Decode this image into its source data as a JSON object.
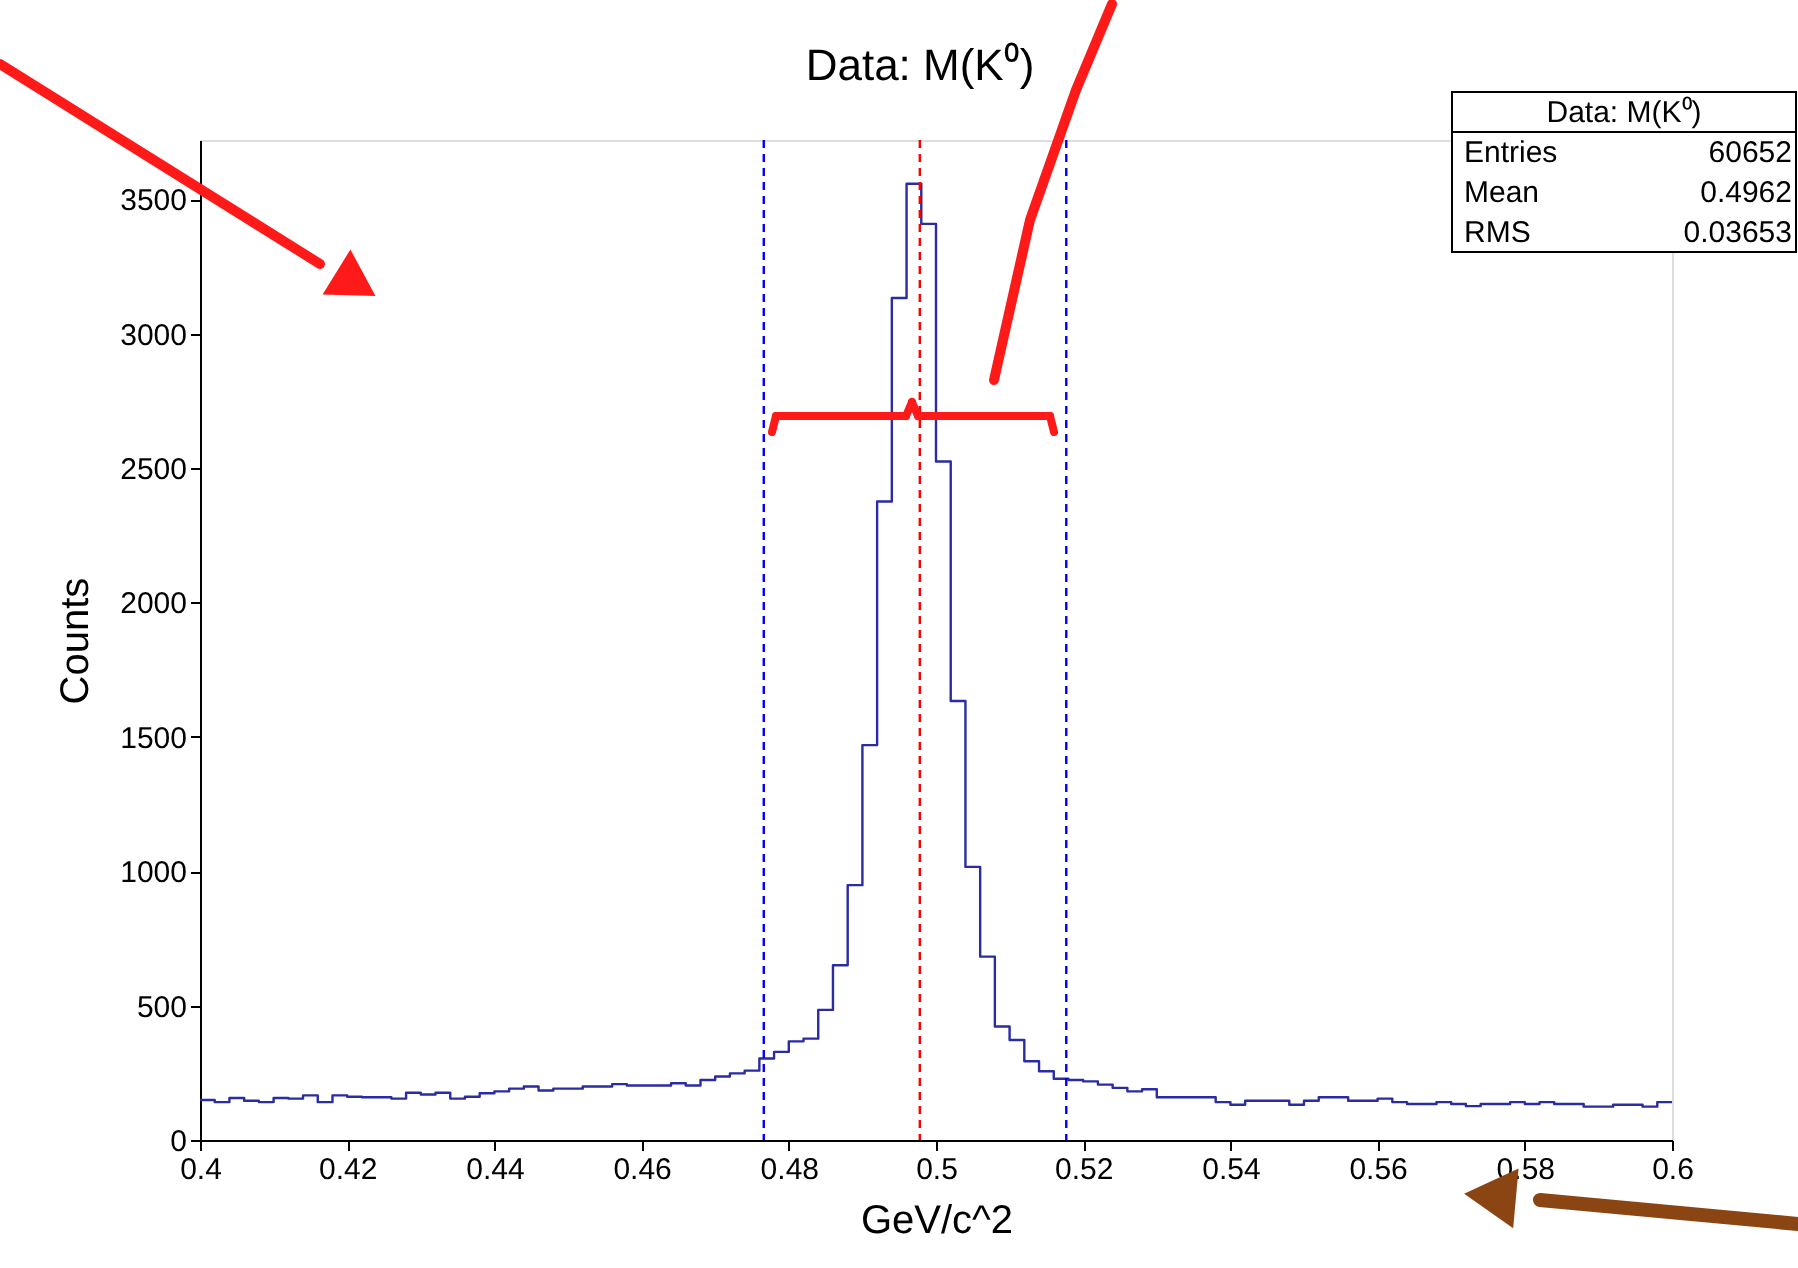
{
  "chart_data": {
    "type": "histogram",
    "title": "Data: M(K⁰)",
    "xlabel": "GeV/c^2",
    "ylabel": "Counts",
    "color": "#2b2ba3",
    "bins": [
      0.4,
      0.402,
      0.404,
      0.406,
      0.408,
      0.41,
      0.412,
      0.414,
      0.416,
      0.418,
      0.42,
      0.422,
      0.424,
      0.426,
      0.428,
      0.43,
      0.432,
      0.434,
      0.436,
      0.438,
      0.44,
      0.442,
      0.444,
      0.446,
      0.448,
      0.45,
      0.452,
      0.454,
      0.456,
      0.458,
      0.46,
      0.462,
      0.464,
      0.466,
      0.468,
      0.47,
      0.472,
      0.474,
      0.476,
      0.478,
      0.48,
      0.482,
      0.484,
      0.486,
      0.488,
      0.49,
      0.492,
      0.494,
      0.496,
      0.498,
      0.5,
      0.502,
      0.504,
      0.506,
      0.508,
      0.51,
      0.512,
      0.514,
      0.516,
      0.518,
      0.52,
      0.522,
      0.524,
      0.526,
      0.528,
      0.53,
      0.532,
      0.534,
      0.536,
      0.538,
      0.54,
      0.542,
      0.544,
      0.546,
      0.548,
      0.55,
      0.552,
      0.554,
      0.556,
      0.558,
      0.56,
      0.562,
      0.564,
      0.566,
      0.568,
      0.57,
      0.572,
      0.574,
      0.576,
      0.578,
      0.58,
      0.582,
      0.584,
      0.586,
      0.588,
      0.59,
      0.592,
      0.594,
      0.596,
      0.598,
      0.6
    ],
    "values": [
      149,
      141,
      156,
      146,
      141,
      156,
      154,
      166,
      141,
      166,
      161,
      159,
      159,
      154,
      176,
      169,
      176,
      154,
      161,
      174,
      181,
      191,
      199,
      184,
      191,
      191,
      199,
      199,
      208,
      203,
      203,
      203,
      211,
      203,
      223,
      236,
      248,
      258,
      303,
      328,
      367,
      377,
      484,
      650,
      948,
      1469,
      2375,
      3132,
      3557,
      3408,
      2524,
      1633,
      1016,
      682,
      422,
      372,
      293,
      256,
      228,
      223,
      218,
      206,
      194,
      181,
      189,
      159,
      159,
      159,
      159,
      141,
      131,
      146,
      146,
      146,
      131,
      146,
      159,
      159,
      146,
      146,
      154,
      141,
      134,
      134,
      141,
      134,
      126,
      134,
      134,
      141,
      134,
      141,
      134,
      134,
      124,
      124,
      131,
      131,
      124,
      141
    ],
    "xlim": [
      0.4,
      0.6
    ],
    "xticks": [
      0.4,
      0.42,
      0.44,
      0.46,
      0.48,
      0.5,
      0.52,
      0.54,
      0.56,
      0.58,
      0.6
    ],
    "ylim": [
      0,
      3720
    ],
    "yticks": [
      0,
      500,
      1000,
      1500,
      2000,
      2500,
      3000,
      3500
    ],
    "grid": false,
    "ref_lines": [
      {
        "axis": "x",
        "value": 0.4766,
        "color": "#0000ff",
        "line_style": "dashed"
      },
      {
        "axis": "x",
        "value": 0.5177,
        "color": "#0000ff",
        "line_style": "dashed"
      },
      {
        "axis": "x",
        "value": 0.4978,
        "color": "#ff0000",
        "line_style": "dashed"
      }
    ],
    "annotations": [
      "Data: M(K⁰)",
      "Entries",
      "60652",
      "Mean",
      "0.4962",
      "RMS",
      "0.03653"
    ]
  }
}
